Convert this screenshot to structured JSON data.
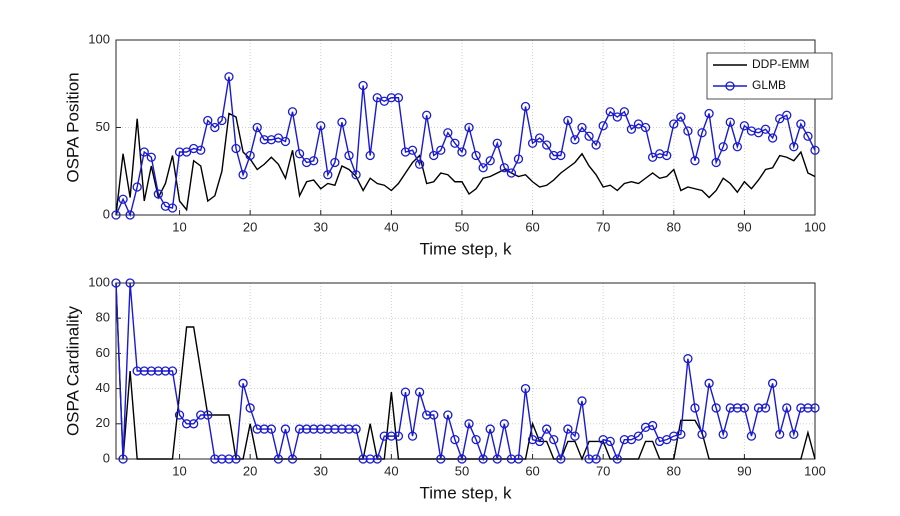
{
  "chart_data": [
    {
      "type": "line",
      "xlabel": "Time step, k",
      "ylabel": "OSPA Position",
      "x": [
        1,
        2,
        3,
        4,
        5,
        6,
        7,
        8,
        9,
        10,
        11,
        12,
        13,
        14,
        15,
        16,
        17,
        18,
        19,
        20,
        21,
        22,
        23,
        24,
        25,
        26,
        27,
        28,
        29,
        30,
        31,
        32,
        33,
        34,
        35,
        36,
        37,
        38,
        39,
        40,
        41,
        42,
        43,
        44,
        45,
        46,
        47,
        48,
        49,
        50,
        51,
        52,
        53,
        54,
        55,
        56,
        57,
        58,
        59,
        60,
        61,
        62,
        63,
        64,
        65,
        66,
        67,
        68,
        69,
        70,
        71,
        72,
        73,
        74,
        75,
        76,
        77,
        78,
        79,
        80,
        81,
        82,
        83,
        84,
        85,
        86,
        87,
        88,
        89,
        90,
        91,
        92,
        93,
        94,
        95,
        96,
        97,
        98,
        99,
        100
      ],
      "xlim": [
        1,
        100
      ],
      "xticks": [
        10,
        20,
        30,
        40,
        50,
        60,
        70,
        80,
        90,
        100
      ],
      "ylim": [
        0,
        100
      ],
      "yticks": [
        0,
        50,
        100
      ],
      "grid": true,
      "legend": "upper right",
      "series": [
        {
          "name": "DDP-EMM",
          "color": "#000000",
          "marker": "none",
          "values": [
            0,
            35,
            10,
            55,
            8,
            28,
            10,
            18,
            34,
            8,
            3,
            31,
            28,
            8,
            11,
            25,
            58,
            56,
            36,
            32,
            26,
            29,
            33,
            29,
            21,
            37,
            11,
            19,
            20,
            15,
            18,
            17,
            28,
            26,
            22,
            14,
            21,
            18,
            17,
            14,
            18,
            24,
            30,
            34,
            18,
            19,
            24,
            23,
            19,
            19,
            12,
            15,
            21,
            22,
            24,
            26,
            24,
            22,
            23,
            19,
            16,
            17,
            20,
            24,
            27,
            30,
            35,
            28,
            23,
            16,
            17,
            14,
            18,
            19,
            18,
            21,
            24,
            21,
            22,
            26,
            14,
            16,
            15,
            14,
            10,
            14,
            21,
            18,
            13,
            19,
            15,
            20,
            26,
            27,
            34,
            33,
            31,
            36,
            24,
            22
          ]
        },
        {
          "name": "GLMB",
          "color": "#1a1ad0",
          "marker": "circle",
          "values": [
            0,
            9,
            0,
            16,
            36,
            33,
            12,
            5,
            4,
            36,
            36,
            38,
            37,
            54,
            50,
            54,
            79,
            38,
            23,
            34,
            50,
            43,
            43,
            44,
            42,
            59,
            35,
            30,
            31,
            51,
            23,
            30,
            53,
            34,
            23,
            74,
            34,
            67,
            65,
            67,
            67,
            36,
            37,
            29,
            57,
            34,
            37,
            47,
            41,
            36,
            50,
            34,
            27,
            31,
            41,
            27,
            24,
            32,
            62,
            41,
            44,
            40,
            34,
            34,
            54,
            43,
            50,
            45,
            40,
            51,
            59,
            56,
            59,
            49,
            52,
            50,
            33,
            35,
            34,
            52,
            56,
            48,
            31,
            47,
            58,
            30,
            39,
            53,
            39,
            51,
            48,
            47,
            49,
            44,
            55,
            57,
            39,
            52,
            45,
            37
          ]
        }
      ]
    },
    {
      "type": "line",
      "xlabel": "Time step, k",
      "ylabel": "OSPA Cardinality",
      "x": [
        1,
        2,
        3,
        4,
        5,
        6,
        7,
        8,
        9,
        10,
        11,
        12,
        13,
        14,
        15,
        16,
        17,
        18,
        19,
        20,
        21,
        22,
        23,
        24,
        25,
        26,
        27,
        28,
        29,
        30,
        31,
        32,
        33,
        34,
        35,
        36,
        37,
        38,
        39,
        40,
        41,
        42,
        43,
        44,
        45,
        46,
        47,
        48,
        49,
        50,
        51,
        52,
        53,
        54,
        55,
        56,
        57,
        58,
        59,
        60,
        61,
        62,
        63,
        64,
        65,
        66,
        67,
        68,
        69,
        70,
        71,
        72,
        73,
        74,
        75,
        76,
        77,
        78,
        79,
        80,
        81,
        82,
        83,
        84,
        85,
        86,
        87,
        88,
        89,
        90,
        91,
        92,
        93,
        94,
        95,
        96,
        97,
        98,
        99,
        100
      ],
      "xlim": [
        1,
        100
      ],
      "xticks": [
        10,
        20,
        30,
        40,
        50,
        60,
        70,
        80,
        90,
        100
      ],
      "ylim": [
        0,
        100
      ],
      "yticks": [
        0,
        20,
        40,
        60,
        80,
        100
      ],
      "grid": true,
      "series": [
        {
          "name": "DDP-EMM",
          "color": "#000000",
          "marker": "none",
          "values": [
            100,
            0,
            50,
            0,
            0,
            0,
            0,
            0,
            0,
            37,
            75,
            75,
            50,
            25,
            25,
            25,
            25,
            0,
            0,
            20,
            0,
            0,
            0,
            0,
            0,
            0,
            0,
            0,
            0,
            0,
            0,
            0,
            0,
            0,
            0,
            0,
            20,
            0,
            0,
            38,
            0,
            0,
            0,
            0,
            0,
            0,
            0,
            0,
            0,
            0,
            0,
            0,
            0,
            0,
            0,
            0,
            0,
            0,
            0,
            20,
            10,
            10,
            0,
            0,
            10,
            10,
            0,
            10,
            10,
            10,
            0,
            0,
            0,
            0,
            0,
            10,
            10,
            0,
            0,
            0,
            22,
            22,
            22,
            15,
            0,
            0,
            0,
            0,
            0,
            0,
            0,
            0,
            0,
            0,
            0,
            0,
            0,
            0,
            15,
            0
          ]
        },
        {
          "name": "GLMB",
          "color": "#1a1ad0",
          "marker": "circle",
          "values": [
            100,
            0,
            100,
            50,
            50,
            50,
            50,
            50,
            50,
            25,
            20,
            20,
            25,
            25,
            0,
            0,
            0,
            0,
            43,
            29,
            17,
            17,
            17,
            0,
            17,
            0,
            17,
            17,
            17,
            17,
            17,
            17,
            17,
            17,
            17,
            0,
            0,
            0,
            13,
            13,
            13,
            38,
            13,
            38,
            25,
            25,
            0,
            25,
            11,
            0,
            20,
            11,
            0,
            17,
            0,
            20,
            0,
            0,
            40,
            11,
            10,
            17,
            11,
            0,
            17,
            13,
            33,
            0,
            0,
            11,
            10,
            0,
            11,
            11,
            13,
            18,
            19,
            10,
            11,
            13,
            14,
            57,
            29,
            14,
            43,
            29,
            14,
            29,
            29,
            29,
            13,
            29,
            29,
            43,
            14,
            29,
            14,
            29,
            29,
            29
          ]
        }
      ]
    }
  ]
}
